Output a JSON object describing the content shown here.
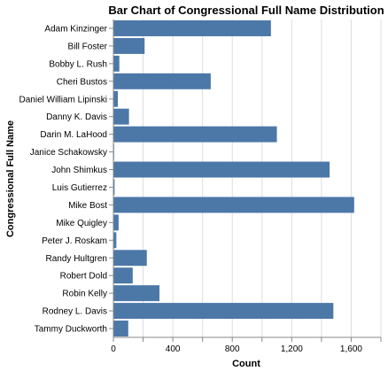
{
  "chart_data": {
    "type": "bar",
    "orientation": "horizontal",
    "title": "Bar Chart of Congressional Full Name Distribution",
    "xlabel": "Count",
    "ylabel": "Congressional Full Name",
    "xlim": [
      0,
      1800
    ],
    "xticks": [
      "0",
      "400",
      "800",
      "1,200",
      "1,600"
    ],
    "grid": true,
    "bar_color": "#4c78a8",
    "categories": [
      "Adam Kinzinger",
      "Bill Foster",
      "Bobby L. Rush",
      "Cheri Bustos",
      "Daniel William Lipinski",
      "Danny K. Davis",
      "Darin M. LaHood",
      "Janice Schakowsky",
      "John Shimkus",
      "Luis Gutierrez",
      "Mike Bost",
      "Mike Quigley",
      "Peter J. Roskam",
      "Randy Hultgren",
      "Robert Dold",
      "Robin Kelly",
      "Rodney L. Davis",
      "Tammy Duckworth"
    ],
    "values": [
      1060,
      210,
      40,
      655,
      30,
      105,
      1100,
      5,
      1455,
      8,
      1620,
      35,
      20,
      225,
      130,
      310,
      1480,
      100
    ]
  }
}
